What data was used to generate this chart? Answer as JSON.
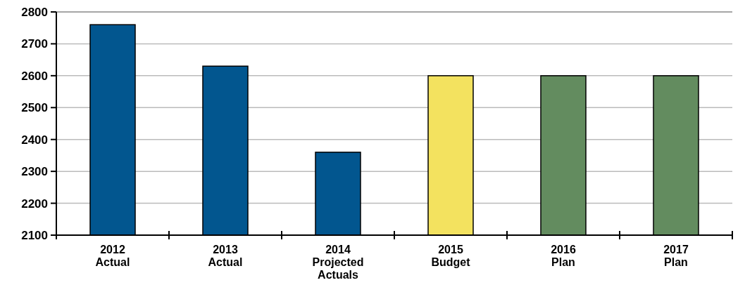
{
  "chart_data": {
    "type": "bar",
    "categories": [
      "2012 Actual",
      "2013 Actual",
      "2014 Projected Actuals",
      "2015 Budget",
      "2016 Plan",
      "2017 Plan"
    ],
    "values": [
      2760,
      2630,
      2360,
      2600,
      2600,
      2600
    ],
    "colors": [
      "#02568f",
      "#02568f",
      "#02568f",
      "#f3e25f",
      "#638c5f",
      "#638c5f"
    ],
    "ylim": [
      2100,
      2800
    ],
    "yticks": [
      2100,
      2200,
      2300,
      2400,
      2500,
      2600,
      2700,
      2800
    ],
    "grid": "y"
  }
}
